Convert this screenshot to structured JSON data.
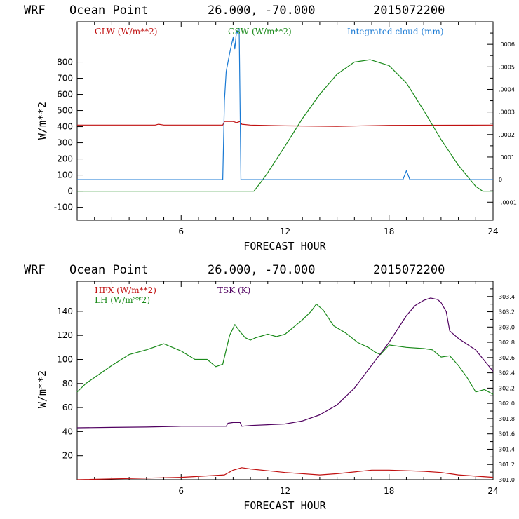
{
  "chart_data": [
    {
      "type": "line",
      "title_parts": [
        "WRF",
        "Ocean Point",
        "26.000, -70.000",
        "2015072200"
      ],
      "xlabel": "FORECAST HOUR",
      "ylabel": "W/m**2",
      "xlim": [
        0,
        24
      ],
      "ylim": [
        -180,
        1050
      ],
      "xticks": [
        6,
        12,
        18,
        24
      ],
      "yticks": [
        -100,
        0,
        100,
        200,
        300,
        400,
        500,
        600,
        700,
        800
      ],
      "y2lim": [
        -0.00018,
        0.0007
      ],
      "y2ticks": [
        -0.0001,
        0,
        0.0001,
        0.0002,
        0.0003,
        0.0004,
        0.0005,
        0.0006
      ],
      "y2ticklabels": [
        "-.0001",
        "0",
        ".0001",
        ".0002",
        ".0003",
        ".0004",
        ".0005",
        ".0006"
      ],
      "series": [
        {
          "name": "GLW (W/m**2)",
          "color": "#c01010",
          "axis": "left",
          "x": [
            0,
            4.5,
            4.7,
            5.0,
            8.4,
            8.5,
            9.0,
            9.2,
            9.4,
            9.5,
            10.0,
            12.0,
            15.0,
            18.0,
            24
          ],
          "y": [
            410,
            410,
            415,
            410,
            410,
            432,
            432,
            425,
            432,
            415,
            410,
            405,
            402,
            408,
            410
          ]
        },
        {
          "name": "GSW (W/m**2)",
          "color": "#1a8a1a",
          "axis": "left",
          "x": [
            0,
            10.2,
            10.6,
            11.0,
            12.0,
            13.0,
            14.0,
            15.0,
            16.0,
            16.9,
            18.0,
            19.0,
            20.0,
            21.0,
            22.0,
            23.0,
            23.4,
            24
          ],
          "y": [
            0,
            0,
            55,
            115,
            280,
            450,
            600,
            725,
            800,
            815,
            778,
            670,
            500,
            320,
            160,
            30,
            0,
            0
          ]
        },
        {
          "name": "Integrated cloud (mm)",
          "color": "#1a7ad4",
          "axis": "right",
          "x": [
            0,
            8.4,
            8.5,
            8.6,
            8.7,
            8.8,
            9.0,
            9.1,
            9.2,
            9.25,
            9.3,
            9.35,
            9.45,
            9.5,
            18.8,
            19.0,
            19.2,
            24
          ],
          "y": [
            0,
            0,
            0.00035,
            0.00048,
            0.00052,
            0.00056,
            0.00063,
            0.00058,
            0.00066,
            0.00065,
            0.00067,
            0.00067,
            0.0,
            0.0,
            0.0,
            4e-05,
            0.0,
            0
          ]
        }
      ],
      "legend": "top"
    },
    {
      "type": "line",
      "title_parts": [
        "WRF",
        "Ocean Point",
        "26.000, -70.000",
        "2015072200"
      ],
      "xlabel": "FORECAST HOUR",
      "ylabel": "W/m**2",
      "xlim": [
        0,
        24
      ],
      "ylim": [
        0,
        165
      ],
      "xticks": [
        6,
        12,
        18,
        24
      ],
      "yticks": [
        20,
        40,
        60,
        80,
        100,
        120,
        140
      ],
      "y2lim": [
        301.0,
        303.6
      ],
      "y2ticks": [
        301.0,
        301.2,
        301.4,
        301.6,
        301.8,
        302.0,
        302.2,
        302.4,
        302.6,
        302.8,
        303.0,
        303.2,
        303.4
      ],
      "y2ticklabels": [
        "301.0",
        "301.2",
        "301.4",
        "301.6",
        "301.8",
        "302.0",
        "302.2",
        "302.4",
        "302.6",
        "302.8",
        "303.0",
        "303.2",
        "303.4"
      ],
      "series": [
        {
          "name": "HFX (W/m**2)",
          "color": "#c01010",
          "axis": "left",
          "x": [
            0,
            3,
            6,
            8.5,
            9.0,
            9.5,
            10.0,
            12.0,
            14.0,
            15.0,
            17.0,
            18.0,
            20.0,
            21.0,
            22.0,
            24
          ],
          "y": [
            0,
            1,
            2,
            4,
            8,
            10,
            9,
            6,
            4,
            5,
            8,
            8,
            7,
            6,
            4,
            2
          ]
        },
        {
          "name": "LH (W/m**2)",
          "color": "#1a8a1a",
          "axis": "left",
          "x": [
            0,
            0.5,
            1.0,
            2.0,
            3.0,
            4.0,
            5.0,
            6.0,
            6.8,
            7.5,
            8.0,
            8.4,
            8.8,
            9.1,
            9.4,
            9.7,
            10.0,
            10.3,
            11.0,
            11.5,
            12.0,
            12.5,
            13.0,
            13.5,
            13.8,
            14.2,
            14.8,
            15.5,
            16.2,
            16.8,
            17.2,
            17.5,
            18.0,
            19.0,
            20.0,
            20.5,
            21.0,
            21.5,
            22.0,
            22.5,
            23.0,
            23.5,
            24
          ],
          "y": [
            73,
            80,
            85,
            95,
            104,
            108,
            113,
            107,
            100,
            100,
            94,
            96,
            120,
            129,
            123,
            118,
            116,
            118,
            121,
            119,
            121,
            127,
            133,
            140,
            146,
            141,
            128,
            122,
            114,
            110,
            106,
            104,
            112,
            110,
            109,
            108,
            102,
            103,
            95,
            85,
            73,
            75,
            71
          ]
        },
        {
          "name": "TSK (K)",
          "color": "#500060",
          "axis": "right",
          "x": [
            0,
            2,
            4,
            6,
            8.6,
            8.7,
            9.0,
            9.4,
            9.5,
            10.0,
            12.0,
            13.0,
            14.0,
            15.0,
            16.0,
            17.0,
            18.0,
            19.0,
            19.5,
            20.0,
            20.4,
            20.8,
            21.0,
            21.3,
            21.5,
            22.0,
            23.0,
            24
          ],
          "y": [
            301.68,
            301.685,
            301.69,
            301.7,
            301.7,
            301.74,
            301.75,
            301.75,
            301.7,
            301.71,
            301.73,
            301.77,
            301.85,
            301.98,
            302.2,
            302.5,
            302.8,
            303.15,
            303.28,
            303.35,
            303.38,
            303.36,
            303.32,
            303.2,
            302.95,
            302.85,
            302.7,
            302.42
          ]
        }
      ],
      "legend": "top-left"
    }
  ]
}
